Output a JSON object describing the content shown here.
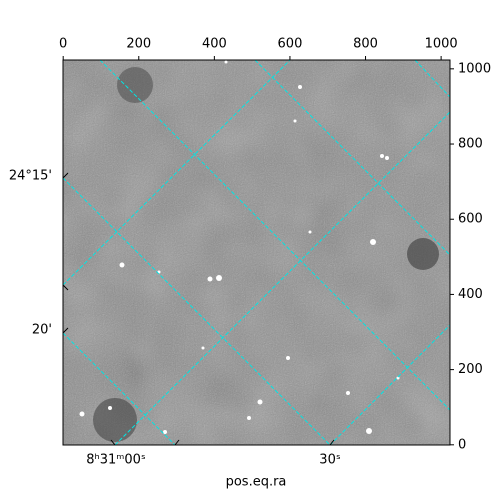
{
  "chart_data": {
    "type": "image",
    "xlabel": "pos.eq.ra",
    "xlim": [
      -0.5,
      1023.5
    ],
    "ylim": [
      -0.5,
      1023.5
    ],
    "xticks": [
      0,
      200,
      400,
      600,
      800,
      1000
    ],
    "yticks": [
      0,
      200,
      400,
      600,
      800,
      1000
    ],
    "world_ticks": {
      "dec": [
        "24°15'",
        "20'"
      ],
      "ra": [
        "8ʰ31ᵐ00ˢ",
        "30ˢ"
      ]
    },
    "colormap": "gray",
    "grid_color": "#00e5e5"
  }
}
